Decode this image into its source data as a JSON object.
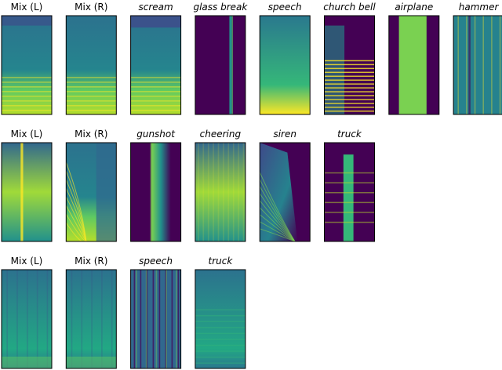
{
  "rows": [
    {
      "panels": [
        {
          "label": "Mix (L)",
          "italic": false
        },
        {
          "label": "Mix (R)",
          "italic": false
        },
        {
          "label": "scream",
          "italic": true
        },
        {
          "label": "glass break",
          "italic": true
        },
        {
          "label": "speech",
          "italic": true
        },
        {
          "label": "church bell",
          "italic": true
        },
        {
          "label": "airplane",
          "italic": true
        },
        {
          "label": "hammer",
          "italic": true
        }
      ]
    },
    {
      "panels": [
        {
          "label": "Mix (L)",
          "italic": false
        },
        {
          "label": "Mix (R)",
          "italic": false
        },
        {
          "label": "gunshot",
          "italic": true
        },
        {
          "label": "cheering",
          "italic": true
        },
        {
          "label": "siren",
          "italic": true
        },
        {
          "label": "truck",
          "italic": true
        }
      ]
    },
    {
      "panels": [
        {
          "label": "Mix (L)",
          "italic": false
        },
        {
          "label": "Mix (R)",
          "italic": false
        },
        {
          "label": "speech",
          "italic": true
        },
        {
          "label": "truck",
          "italic": true
        }
      ]
    }
  ]
}
